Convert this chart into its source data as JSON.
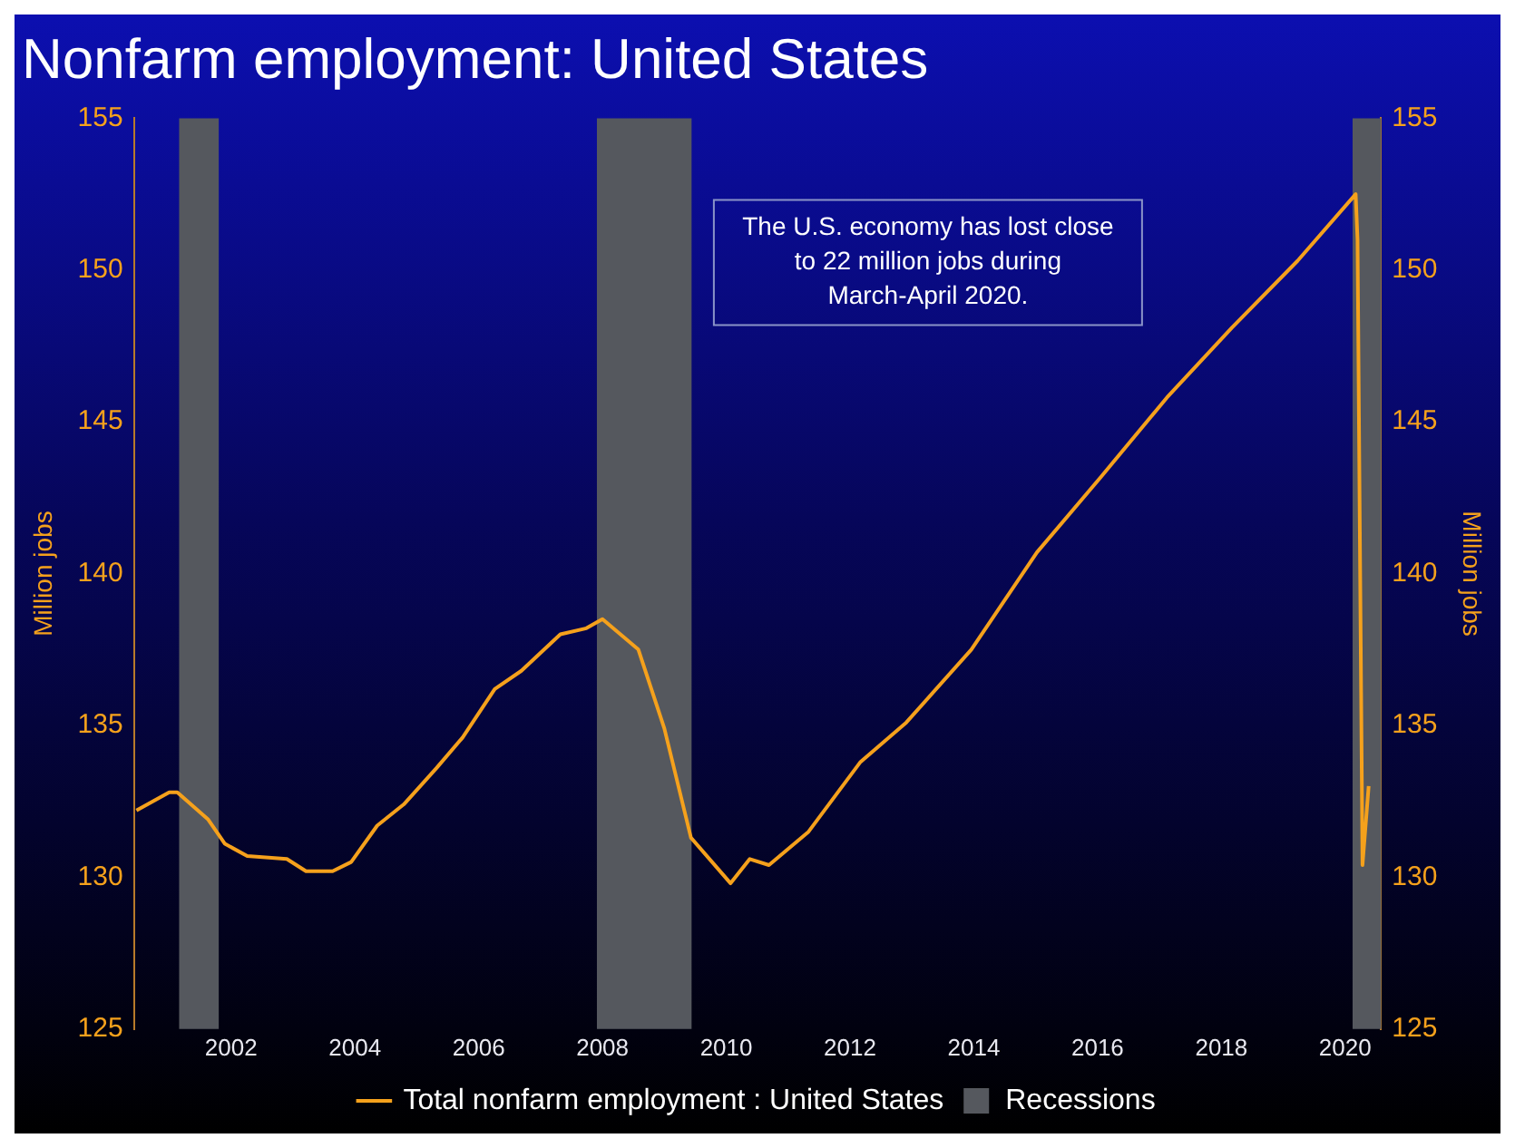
{
  "chart_data": {
    "type": "line",
    "title": "Nonfarm employment: United States",
    "ylabel": "Million jobs",
    "y2label": "Million jobs",
    "annotations": [
      "The U.S. economy has lost close to 22 million jobs during March-April 2020."
    ],
    "x": [
      2000.47,
      2001.0,
      2001.13,
      2001.63,
      2001.9,
      2002.26,
      2002.9,
      2003.21,
      2003.64,
      2003.94,
      2004.36,
      2004.79,
      2005.32,
      2005.74,
      2006.26,
      2006.69,
      2007.32,
      2007.74,
      2008.0,
      2008.58,
      2009.0,
      2009.43,
      2010.07,
      2010.38,
      2010.69,
      2011.33,
      2012.17,
      2012.91,
      2013.96,
      2015.02,
      2016.06,
      2017.12,
      2018.17,
      2019.23,
      2020.17,
      2020.2,
      2020.28,
      2020.38
    ],
    "series": [
      {
        "name": "Total nonfarm employment : United States",
        "color": "#f5a11c",
        "values": [
          132.2,
          132.8,
          132.8,
          131.9,
          131.1,
          130.7,
          130.6,
          130.2,
          130.2,
          130.5,
          131.7,
          132.4,
          133.6,
          134.6,
          136.2,
          136.8,
          138.0,
          138.2,
          138.5,
          137.5,
          134.9,
          131.3,
          129.8,
          130.6,
          130.4,
          131.5,
          133.8,
          135.1,
          137.5,
          140.7,
          143.2,
          145.8,
          148.1,
          150.3,
          152.5,
          151.0,
          130.4,
          133.0
        ]
      }
    ],
    "bands": [
      {
        "axis": "x",
        "from": 2001.16,
        "to": 2001.8,
        "label": "Recessions",
        "color": "#55585e"
      },
      {
        "axis": "x",
        "from": 2007.91,
        "to": 2009.44,
        "color": "#55585e"
      },
      {
        "axis": "x",
        "from": 2020.12,
        "to": 2020.58,
        "color": "#55585e"
      }
    ],
    "xlim": [
      2000.43,
      2020.58
    ],
    "xticks": [
      2002,
      2004,
      2006,
      2008,
      2010,
      2012,
      2014,
      2016,
      2018,
      2020
    ],
    "ylim": [
      125,
      155
    ],
    "yticks": [
      125,
      130,
      135,
      140,
      145,
      150,
      155
    ],
    "y2lim": [
      125,
      155
    ],
    "y2ticks": [
      125,
      130,
      135,
      140,
      145,
      150,
      155
    ],
    "legend": "bottom"
  }
}
